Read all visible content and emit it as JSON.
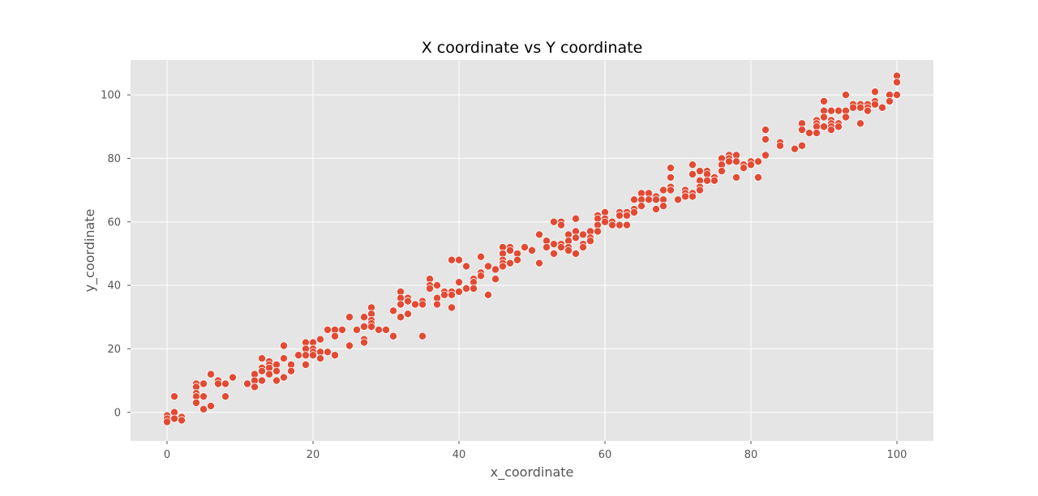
{
  "chart_data": {
    "type": "scatter",
    "title": "X coordinate vs Y coordinate",
    "xlabel": "x_coordinate",
    "ylabel": "y_coordinate",
    "xlim": [
      -5,
      105
    ],
    "ylim": [
      -9,
      111
    ],
    "xticks": [
      0,
      20,
      40,
      60,
      80,
      100
    ],
    "yticks": [
      0,
      20,
      40,
      60,
      80,
      100
    ],
    "grid": true,
    "colors": {
      "marker": "#E24A33",
      "marker_edge": "#ffffff",
      "plot_bg": "#E5E5E5",
      "grid": "#ffffff"
    },
    "points": [
      [
        0,
        -1
      ],
      [
        0,
        -2
      ],
      [
        0,
        -3
      ],
      [
        1,
        5
      ],
      [
        1,
        0
      ],
      [
        1,
        -2
      ],
      [
        2,
        -1.5
      ],
      [
        2,
        -2.5
      ],
      [
        4,
        9
      ],
      [
        4,
        8
      ],
      [
        4,
        6
      ],
      [
        4,
        5
      ],
      [
        4,
        3
      ],
      [
        5,
        9
      ],
      [
        5,
        5
      ],
      [
        5,
        1
      ],
      [
        6,
        12
      ],
      [
        6,
        2
      ],
      [
        7,
        10
      ],
      [
        7,
        9
      ],
      [
        8,
        9
      ],
      [
        8,
        5
      ],
      [
        9,
        11
      ],
      [
        11,
        9
      ],
      [
        12,
        12
      ],
      [
        12,
        10
      ],
      [
        12,
        8
      ],
      [
        13,
        17
      ],
      [
        13,
        14
      ],
      [
        13,
        13
      ],
      [
        13,
        10
      ],
      [
        14,
        16
      ],
      [
        14,
        15
      ],
      [
        14,
        14
      ],
      [
        14,
        12
      ],
      [
        15,
        15
      ],
      [
        15,
        13
      ],
      [
        15,
        10
      ],
      [
        16,
        21
      ],
      [
        16,
        17
      ],
      [
        16,
        11
      ],
      [
        17,
        15
      ],
      [
        17,
        13
      ],
      [
        18,
        18
      ],
      [
        19,
        22
      ],
      [
        19,
        20
      ],
      [
        19,
        18
      ],
      [
        19,
        15
      ],
      [
        20,
        22
      ],
      [
        20,
        20
      ],
      [
        20,
        19
      ],
      [
        20,
        18
      ],
      [
        21,
        23
      ],
      [
        21,
        19
      ],
      [
        21,
        17
      ],
      [
        22,
        26
      ],
      [
        22,
        19
      ],
      [
        23,
        26
      ],
      [
        23,
        24
      ],
      [
        23,
        18
      ],
      [
        24,
        26
      ],
      [
        25,
        30
      ],
      [
        25,
        21
      ],
      [
        26,
        26
      ],
      [
        27,
        30
      ],
      [
        27,
        27
      ],
      [
        27,
        23
      ],
      [
        27,
        22
      ],
      [
        28,
        33
      ],
      [
        28,
        31
      ],
      [
        28,
        29
      ],
      [
        28,
        28
      ],
      [
        28,
        27
      ],
      [
        29,
        26
      ],
      [
        30,
        26
      ],
      [
        31,
        32
      ],
      [
        31,
        24
      ],
      [
        32,
        38
      ],
      [
        32,
        36
      ],
      [
        32,
        34
      ],
      [
        32,
        30
      ],
      [
        33,
        36
      ],
      [
        33,
        35
      ],
      [
        33,
        31
      ],
      [
        34,
        34
      ],
      [
        35,
        35
      ],
      [
        35,
        34
      ],
      [
        35,
        24
      ],
      [
        36,
        42
      ],
      [
        36,
        40
      ],
      [
        36,
        39
      ],
      [
        37,
        40
      ],
      [
        37,
        36
      ],
      [
        37,
        34
      ],
      [
        38,
        38
      ],
      [
        38,
        37
      ],
      [
        39,
        48
      ],
      [
        39,
        38
      ],
      [
        39,
        37
      ],
      [
        39,
        33
      ],
      [
        40,
        48
      ],
      [
        40,
        41
      ],
      [
        40,
        38
      ],
      [
        41,
        46
      ],
      [
        41,
        39
      ],
      [
        42,
        42
      ],
      [
        42,
        41
      ],
      [
        42,
        39
      ],
      [
        43,
        49
      ],
      [
        43,
        44
      ],
      [
        43,
        43
      ],
      [
        44,
        46
      ],
      [
        44,
        37
      ],
      [
        45,
        45
      ],
      [
        45,
        42
      ],
      [
        46,
        52
      ],
      [
        46,
        50
      ],
      [
        46,
        48
      ],
      [
        46,
        47
      ],
      [
        46,
        46
      ],
      [
        47,
        52
      ],
      [
        47,
        51
      ],
      [
        47,
        47
      ],
      [
        48,
        50
      ],
      [
        48,
        48
      ],
      [
        49,
        52
      ],
      [
        50,
        51
      ],
      [
        51,
        56
      ],
      [
        51,
        47
      ],
      [
        52,
        54
      ],
      [
        52,
        52
      ],
      [
        53,
        60
      ],
      [
        53,
        53
      ],
      [
        53,
        50
      ],
      [
        54,
        60
      ],
      [
        54,
        59
      ],
      [
        54,
        53
      ],
      [
        54,
        52
      ],
      [
        55,
        56
      ],
      [
        55,
        54
      ],
      [
        55,
        52
      ],
      [
        55,
        51
      ],
      [
        56,
        61
      ],
      [
        56,
        57
      ],
      [
        56,
        55
      ],
      [
        56,
        50
      ],
      [
        57,
        56
      ],
      [
        57,
        53
      ],
      [
        57,
        52
      ],
      [
        58,
        57
      ],
      [
        58,
        55
      ],
      [
        58,
        54
      ],
      [
        59,
        62
      ],
      [
        59,
        61
      ],
      [
        59,
        59
      ],
      [
        59,
        57
      ],
      [
        60,
        63
      ],
      [
        60,
        61
      ],
      [
        60,
        60
      ],
      [
        61,
        60
      ],
      [
        61,
        59
      ],
      [
        62,
        63
      ],
      [
        62,
        62
      ],
      [
        62,
        59
      ],
      [
        63,
        63
      ],
      [
        63,
        62
      ],
      [
        63,
        59
      ],
      [
        64,
        67
      ],
      [
        64,
        64
      ],
      [
        64,
        63
      ],
      [
        65,
        69
      ],
      [
        65,
        67
      ],
      [
        65,
        65
      ],
      [
        66,
        69
      ],
      [
        66,
        67
      ],
      [
        67,
        68
      ],
      [
        67,
        67
      ],
      [
        67,
        64
      ],
      [
        68,
        70
      ],
      [
        68,
        67
      ],
      [
        68,
        65
      ],
      [
        69,
        77
      ],
      [
        69,
        74
      ],
      [
        69,
        71
      ],
      [
        69,
        70
      ],
      [
        70,
        67
      ],
      [
        71,
        70
      ],
      [
        71,
        69
      ],
      [
        71,
        68
      ],
      [
        72,
        78
      ],
      [
        72,
        75
      ],
      [
        72,
        69
      ],
      [
        72,
        68
      ],
      [
        73,
        76
      ],
      [
        73,
        73
      ],
      [
        73,
        71
      ],
      [
        73,
        70
      ],
      [
        74,
        76
      ],
      [
        74,
        75
      ],
      [
        74,
        73
      ],
      [
        75,
        74
      ],
      [
        75,
        73
      ],
      [
        76,
        80
      ],
      [
        76,
        78
      ],
      [
        76,
        76
      ],
      [
        77,
        81
      ],
      [
        77,
        80
      ],
      [
        77,
        79
      ],
      [
        78,
        81
      ],
      [
        78,
        79
      ],
      [
        78,
        74
      ],
      [
        79,
        78
      ],
      [
        79,
        77
      ],
      [
        80,
        79
      ],
      [
        80,
        78
      ],
      [
        81,
        79
      ],
      [
        81,
        74
      ],
      [
        82,
        89
      ],
      [
        82,
        86
      ],
      [
        82,
        81
      ],
      [
        84,
        85
      ],
      [
        84,
        84
      ],
      [
        86,
        83
      ],
      [
        87,
        91
      ],
      [
        87,
        89
      ],
      [
        87,
        84
      ],
      [
        88,
        88
      ],
      [
        89,
        92
      ],
      [
        89,
        91
      ],
      [
        89,
        90
      ],
      [
        89,
        88
      ],
      [
        90,
        98
      ],
      [
        90,
        95
      ],
      [
        90,
        93
      ],
      [
        90,
        90
      ],
      [
        91,
        95
      ],
      [
        91,
        92
      ],
      [
        91,
        91
      ],
      [
        91,
        90
      ],
      [
        91,
        89
      ],
      [
        92,
        95
      ],
      [
        92,
        91
      ],
      [
        92,
        90
      ],
      [
        93,
        100
      ],
      [
        93,
        95
      ],
      [
        93,
        93
      ],
      [
        94,
        97
      ],
      [
        94,
        96
      ],
      [
        95,
        97
      ],
      [
        95,
        96
      ],
      [
        95,
        91
      ],
      [
        96,
        97
      ],
      [
        96,
        96
      ],
      [
        96,
        95
      ],
      [
        97,
        101
      ],
      [
        97,
        98
      ],
      [
        97,
        97
      ],
      [
        98,
        96
      ],
      [
        99,
        100
      ],
      [
        99,
        98
      ],
      [
        100,
        106
      ],
      [
        100,
        104
      ],
      [
        100,
        100
      ]
    ]
  }
}
